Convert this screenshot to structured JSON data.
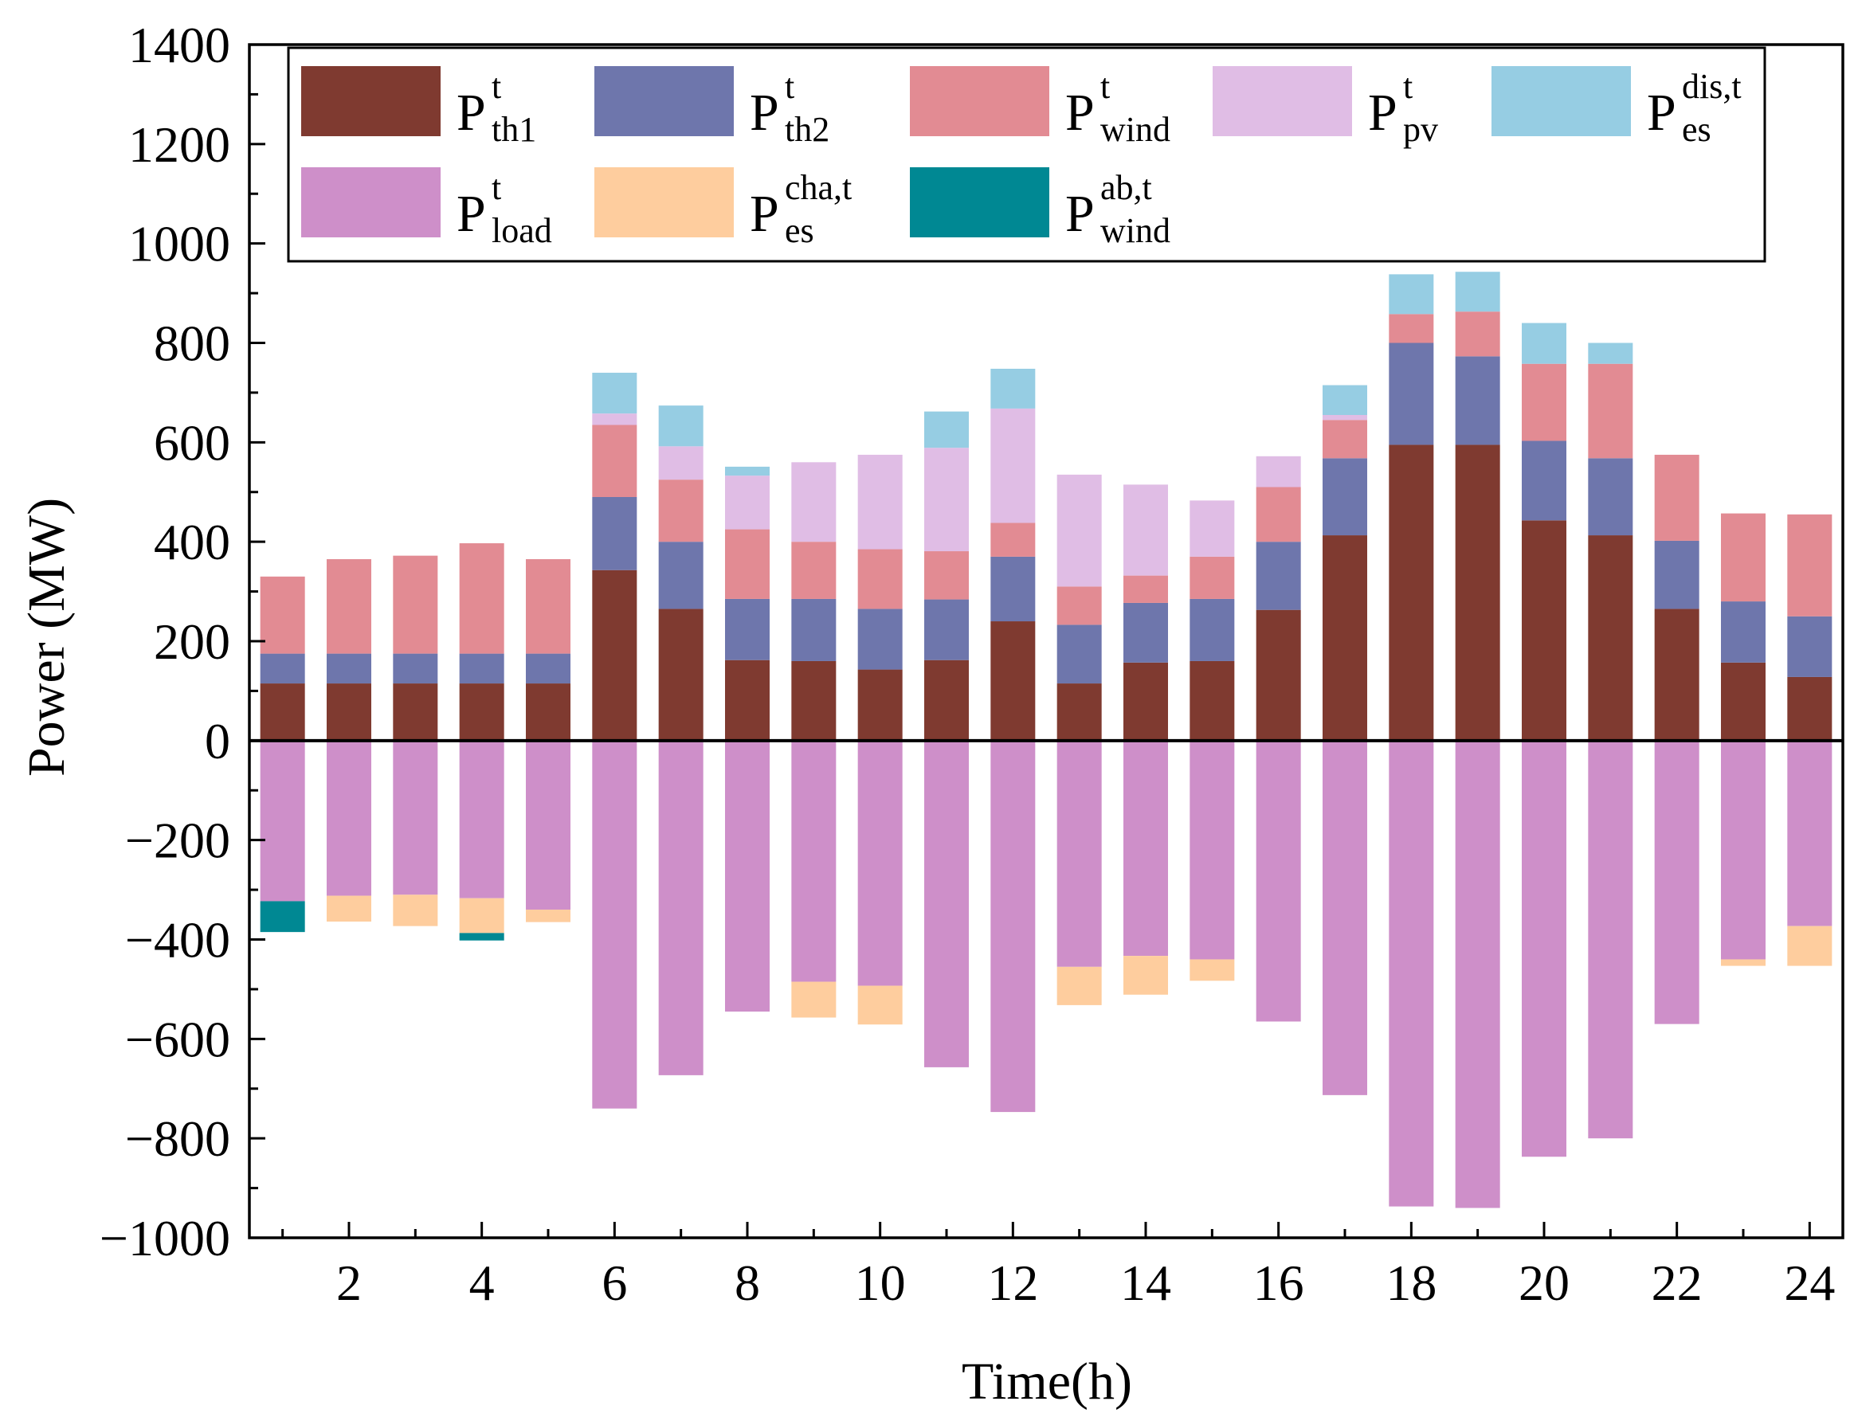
{
  "chart_data": {
    "type": "bar",
    "stacked": true,
    "xlabel": "Time(h)",
    "ylabel": "Power (MW)",
    "ylim": [
      -1000,
      1400
    ],
    "yticks": [
      -1000,
      -800,
      -600,
      -400,
      -200,
      0,
      200,
      400,
      600,
      800,
      1000,
      1200,
      1400
    ],
    "ytick_labels": [
      "−1000",
      "−800",
      "−600",
      "−400",
      "−200",
      "0",
      "200",
      "400",
      "600",
      "800",
      "1000",
      "1200",
      "1400"
    ],
    "xticks": [
      2,
      4,
      6,
      8,
      10,
      12,
      14,
      16,
      18,
      20,
      22,
      24
    ],
    "x": [
      1,
      2,
      3,
      4,
      5,
      6,
      7,
      8,
      9,
      10,
      11,
      12,
      13,
      14,
      15,
      16,
      17,
      18,
      19,
      20,
      21,
      22,
      23,
      24
    ],
    "grid": false,
    "legend_position": "top",
    "series": [
      {
        "key": "th1",
        "base": "P",
        "sup": "t",
        "sub": "th1",
        "color": "#7f3a30",
        "side": "positive",
        "values": [
          115,
          115,
          115,
          115,
          115,
          343,
          265,
          162,
          160,
          143,
          162,
          240,
          115,
          157,
          160,
          263,
          413,
          595,
          595,
          443,
          413,
          265,
          157,
          128
        ]
      },
      {
        "key": "th2",
        "base": "P",
        "sup": "t",
        "sub": "th2",
        "color": "#6e76ac",
        "side": "positive",
        "values": [
          60,
          60,
          60,
          60,
          60,
          147,
          135,
          123,
          125,
          122,
          122,
          130,
          118,
          120,
          125,
          137,
          155,
          205,
          178,
          160,
          155,
          137,
          123,
          122
        ]
      },
      {
        "key": "wind",
        "base": "P",
        "sup": "t",
        "sub": "wind",
        "color": "#e28b93",
        "side": "positive",
        "values": [
          155,
          190,
          197,
          222,
          190,
          145,
          125,
          140,
          115,
          120,
          97,
          68,
          77,
          55,
          85,
          110,
          77,
          58,
          90,
          155,
          190,
          173,
          177,
          205
        ]
      },
      {
        "key": "pv",
        "base": "P",
        "sup": "t",
        "sub": "pv",
        "color": "#e0bde5",
        "side": "positive",
        "values": [
          0,
          0,
          0,
          0,
          0,
          23,
          67,
          108,
          160,
          190,
          208,
          230,
          225,
          183,
          113,
          62,
          10,
          0,
          0,
          0,
          0,
          0,
          0,
          0
        ]
      },
      {
        "key": "esdis",
        "base": "P",
        "sup": "dis,t",
        "sub": "es",
        "color": "#96cde3",
        "side": "positive",
        "values": [
          0,
          0,
          0,
          0,
          0,
          82,
          82,
          18,
          0,
          0,
          73,
          80,
          0,
          0,
          0,
          0,
          60,
          80,
          80,
          82,
          42,
          0,
          0,
          0
        ]
      },
      {
        "key": "load",
        "base": "P",
        "sup": "t",
        "sub": "load",
        "color": "#ce8fc9",
        "side": "negative",
        "values": [
          -323,
          -312,
          -310,
          -317,
          -340,
          -740,
          -673,
          -545,
          -485,
          -493,
          -657,
          -747,
          -455,
          -433,
          -440,
          -565,
          -713,
          -937,
          -940,
          -837,
          -800,
          -570,
          -440,
          -373
        ]
      },
      {
        "key": "escha",
        "base": "P",
        "sup": "cha,t",
        "sub": "es",
        "color": "#fecd9e",
        "side": "negative",
        "values": [
          0,
          -52,
          -63,
          -70,
          -25,
          0,
          0,
          0,
          -72,
          -78,
          0,
          0,
          -77,
          -78,
          -43,
          0,
          0,
          0,
          0,
          0,
          0,
          0,
          -13,
          -80
        ]
      },
      {
        "key": "windab",
        "base": "P",
        "sup": "ab,t",
        "sub": "wind",
        "color": "#008893",
        "side": "negative",
        "values": [
          -62,
          0,
          0,
          -15,
          0,
          0,
          0,
          0,
          0,
          0,
          0,
          0,
          0,
          0,
          0,
          0,
          0,
          0,
          0,
          0,
          0,
          0,
          0,
          0
        ]
      }
    ]
  }
}
